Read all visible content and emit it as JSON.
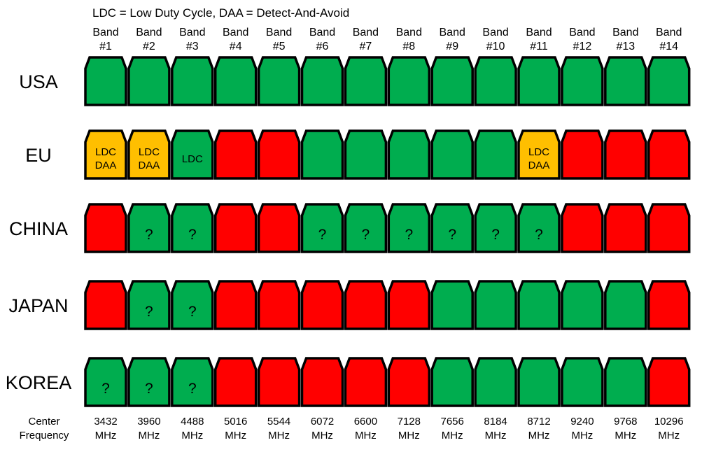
{
  "legend": "LDC = Low Duty Cycle, DAA = Detect-And-Avoid",
  "colors": {
    "allowed": "#00ad4f",
    "conditional": "#ffbf00",
    "prohibited": "#ff0000",
    "outline": "#000000"
  },
  "bands": [
    {
      "line1": "Band",
      "line2": "#1"
    },
    {
      "line1": "Band",
      "line2": "#2"
    },
    {
      "line1": "Band",
      "line2": "#3"
    },
    {
      "line1": "Band",
      "line2": "#4"
    },
    {
      "line1": "Band",
      "line2": "#5"
    },
    {
      "line1": "Band",
      "line2": "#6"
    },
    {
      "line1": "Band",
      "line2": "#7"
    },
    {
      "line1": "Band",
      "line2": "#8"
    },
    {
      "line1": "Band",
      "line2": "#9"
    },
    {
      "line1": "Band",
      "line2": "#10"
    },
    {
      "line1": "Band",
      "line2": "#11"
    },
    {
      "line1": "Band",
      "line2": "#12"
    },
    {
      "line1": "Band",
      "line2": "#13"
    },
    {
      "line1": "Band",
      "line2": "#14"
    }
  ],
  "regions": [
    {
      "name": "USA",
      "cells": [
        {
          "status": "allowed",
          "label": []
        },
        {
          "status": "allowed",
          "label": []
        },
        {
          "status": "allowed",
          "label": []
        },
        {
          "status": "allowed",
          "label": []
        },
        {
          "status": "allowed",
          "label": []
        },
        {
          "status": "allowed",
          "label": []
        },
        {
          "status": "allowed",
          "label": []
        },
        {
          "status": "allowed",
          "label": []
        },
        {
          "status": "allowed",
          "label": []
        },
        {
          "status": "allowed",
          "label": []
        },
        {
          "status": "allowed",
          "label": []
        },
        {
          "status": "allowed",
          "label": []
        },
        {
          "status": "allowed",
          "label": []
        },
        {
          "status": "allowed",
          "label": []
        }
      ]
    },
    {
      "name": "EU",
      "cells": [
        {
          "status": "conditional",
          "label": [
            "LDC",
            "DAA"
          ]
        },
        {
          "status": "conditional",
          "label": [
            "LDC",
            "DAA"
          ]
        },
        {
          "status": "allowed",
          "label": [
            "LDC"
          ]
        },
        {
          "status": "prohibited",
          "label": []
        },
        {
          "status": "prohibited",
          "label": []
        },
        {
          "status": "allowed",
          "label": []
        },
        {
          "status": "allowed",
          "label": []
        },
        {
          "status": "allowed",
          "label": []
        },
        {
          "status": "allowed",
          "label": []
        },
        {
          "status": "allowed",
          "label": []
        },
        {
          "status": "conditional",
          "label": [
            "LDC",
            "DAA"
          ]
        },
        {
          "status": "prohibited",
          "label": []
        },
        {
          "status": "prohibited",
          "label": []
        },
        {
          "status": "prohibited",
          "label": []
        }
      ]
    },
    {
      "name": "CHINA",
      "cells": [
        {
          "status": "prohibited",
          "label": []
        },
        {
          "status": "allowed",
          "label": [
            "?"
          ]
        },
        {
          "status": "allowed",
          "label": [
            "?"
          ]
        },
        {
          "status": "prohibited",
          "label": []
        },
        {
          "status": "prohibited",
          "label": []
        },
        {
          "status": "allowed",
          "label": [
            "?"
          ]
        },
        {
          "status": "allowed",
          "label": [
            "?"
          ]
        },
        {
          "status": "allowed",
          "label": [
            "?"
          ]
        },
        {
          "status": "allowed",
          "label": [
            "?"
          ]
        },
        {
          "status": "allowed",
          "label": [
            "?"
          ]
        },
        {
          "status": "allowed",
          "label": [
            "?"
          ]
        },
        {
          "status": "prohibited",
          "label": []
        },
        {
          "status": "prohibited",
          "label": []
        },
        {
          "status": "prohibited",
          "label": []
        }
      ]
    },
    {
      "name": "JAPAN",
      "cells": [
        {
          "status": "prohibited",
          "label": []
        },
        {
          "status": "allowed",
          "label": [
            "?"
          ]
        },
        {
          "status": "allowed",
          "label": [
            "?"
          ]
        },
        {
          "status": "prohibited",
          "label": []
        },
        {
          "status": "prohibited",
          "label": []
        },
        {
          "status": "prohibited",
          "label": []
        },
        {
          "status": "prohibited",
          "label": []
        },
        {
          "status": "prohibited",
          "label": []
        },
        {
          "status": "allowed",
          "label": []
        },
        {
          "status": "allowed",
          "label": []
        },
        {
          "status": "allowed",
          "label": []
        },
        {
          "status": "allowed",
          "label": []
        },
        {
          "status": "allowed",
          "label": []
        },
        {
          "status": "prohibited",
          "label": []
        }
      ]
    },
    {
      "name": "KOREA",
      "cells": [
        {
          "status": "allowed",
          "label": [
            "?"
          ]
        },
        {
          "status": "allowed",
          "label": [
            "?"
          ]
        },
        {
          "status": "allowed",
          "label": [
            "?"
          ]
        },
        {
          "status": "prohibited",
          "label": []
        },
        {
          "status": "prohibited",
          "label": []
        },
        {
          "status": "prohibited",
          "label": []
        },
        {
          "status": "prohibited",
          "label": []
        },
        {
          "status": "prohibited",
          "label": []
        },
        {
          "status": "allowed",
          "label": []
        },
        {
          "status": "allowed",
          "label": []
        },
        {
          "status": "allowed",
          "label": []
        },
        {
          "status": "allowed",
          "label": []
        },
        {
          "status": "allowed",
          "label": []
        },
        {
          "status": "prohibited",
          "label": []
        }
      ]
    }
  ],
  "footer": {
    "label_line1": "Center",
    "label_line2": "Frequency",
    "frequencies": [
      "3432",
      "3960",
      "4488",
      "5016",
      "5544",
      "6072",
      "6600",
      "7128",
      "7656",
      "8184",
      "8712",
      "9240",
      "9768",
      "10296"
    ],
    "unit": "MHz"
  }
}
